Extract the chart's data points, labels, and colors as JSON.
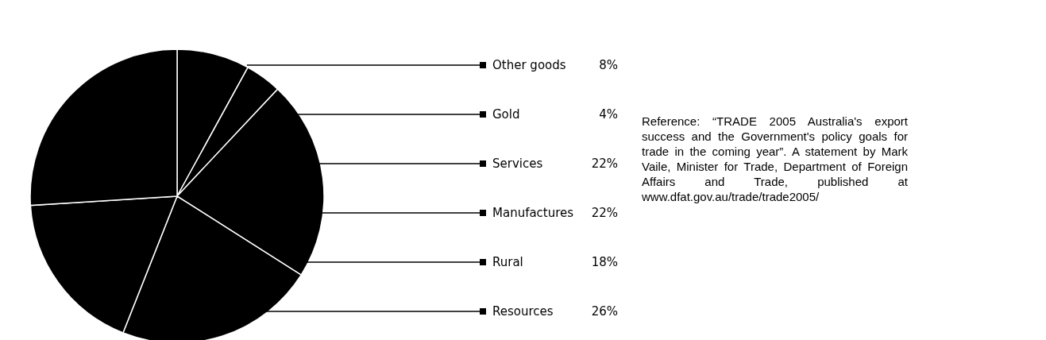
{
  "chart_data": {
    "type": "pie",
    "categories": [
      "Other goods",
      "Gold",
      "Services",
      "Manufactures",
      "Rural",
      "Resources"
    ],
    "values": [
      8,
      4,
      22,
      22,
      18,
      26
    ],
    "value_labels": [
      "8%",
      "4%",
      "22%",
      "22%",
      "18%",
      "26%"
    ],
    "legend": "right",
    "colors": [
      "#000000",
      "#000000",
      "#000000",
      "#000000",
      "#000000",
      "#000000"
    ],
    "annotations": [
      "Reference: “TRADE 2005 Australia's export success and the Government's policy goals for trade in the coming year”. A statement by Mark Vaile, Minister for Trade, Department of Foreign Affairs and Trade, published at www.dfat.gov.au/trade/trade2005/"
    ]
  }
}
